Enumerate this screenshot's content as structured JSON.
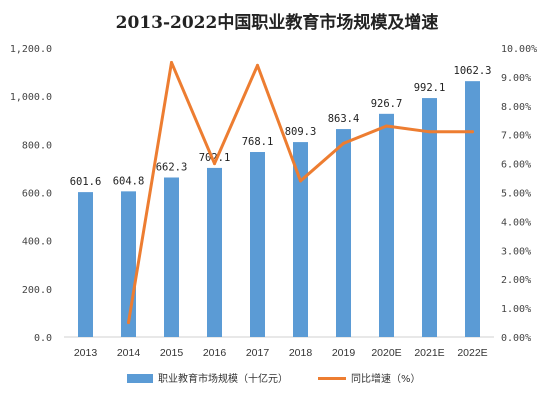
{
  "chart_data": {
    "type": "bar",
    "title": "2013-2022中国职业教育市场规模及增速",
    "categories": [
      "2013",
      "2014",
      "2015",
      "2016",
      "2017",
      "2018",
      "2019",
      "2020E",
      "2021E",
      "2022E"
    ],
    "series": [
      {
        "name": "职业教育市场规模（十亿元）",
        "type": "bar",
        "axis": "left",
        "color": "#5b9bd5",
        "values": [
          601.6,
          604.8,
          662.3,
          702.1,
          768.1,
          809.3,
          863.4,
          926.7,
          992.1,
          1062.3
        ],
        "labels": [
          "601.6",
          "604.8",
          "662.3",
          "702.1",
          "768.1",
          "809.3",
          "863.4",
          "926.7",
          "992.1",
          "1062.3"
        ]
      },
      {
        "name": "同比增速（%）",
        "type": "line",
        "axis": "right",
        "color": "#ed7d31",
        "values": [
          null,
          0.5,
          9.5,
          6.0,
          9.4,
          5.4,
          6.7,
          7.3,
          7.1,
          7.1
        ]
      }
    ],
    "y_left": {
      "ylim": [
        0,
        1200
      ],
      "ticks": [
        0,
        200,
        400,
        600,
        800,
        1000,
        1200
      ],
      "tick_labels": [
        "0.0",
        "200.0",
        "400.0",
        "600.0",
        "800.0",
        "1,000.0",
        "1,200.0"
      ]
    },
    "y_right": {
      "ylim": [
        0,
        10
      ],
      "ticks": [
        0,
        1,
        2,
        3,
        4,
        5,
        6,
        7,
        8,
        9,
        10
      ],
      "tick_labels": [
        "0.00%",
        "1.00%",
        "2.00%",
        "3.00%",
        "4.00%",
        "5.00%",
        "6.00%",
        "7.00%",
        "8.00%",
        "9.00%",
        "10.00%"
      ]
    },
    "grid": false,
    "legend": "bottom"
  }
}
